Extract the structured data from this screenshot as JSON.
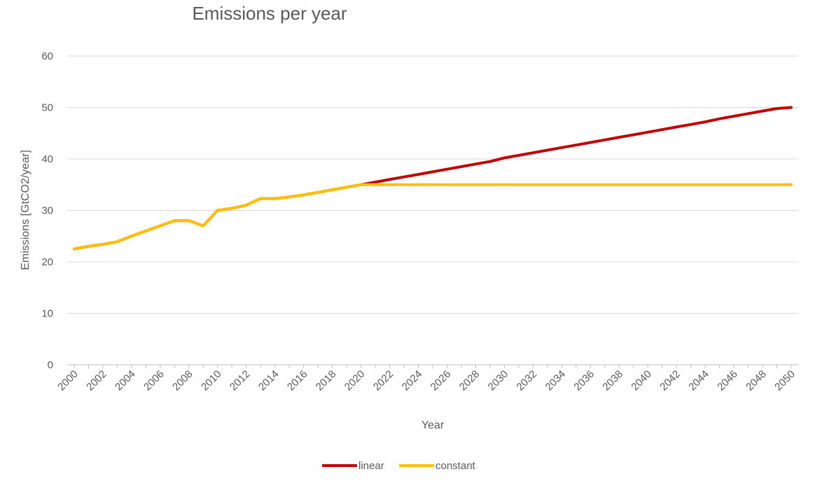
{
  "chart_data": {
    "type": "line",
    "title": "Emissions per year",
    "xlabel": "Year",
    "ylabel": "Emissions [GtCO2/year]",
    "ylim": [
      0,
      60
    ],
    "y_ticks": [
      0,
      10,
      20,
      30,
      40,
      50,
      60
    ],
    "x_tick_labels": [
      "2000",
      "2002",
      "2004",
      "2006",
      "2008",
      "2010",
      "2012",
      "2014",
      "2016",
      "2018",
      "2020",
      "2022",
      "2024",
      "2026",
      "2028",
      "2030",
      "2032",
      "2034",
      "2036",
      "2038",
      "2040",
      "2042",
      "2044",
      "2046",
      "2048",
      "2050"
    ],
    "grid": "horizontal",
    "legend_position": "bottom",
    "x": [
      2000,
      2001,
      2002,
      2003,
      2004,
      2005,
      2006,
      2007,
      2008,
      2009,
      2010,
      2011,
      2012,
      2013,
      2014,
      2015,
      2016,
      2017,
      2018,
      2019,
      2020,
      2021,
      2022,
      2023,
      2024,
      2025,
      2026,
      2027,
      2028,
      2029,
      2030,
      2031,
      2032,
      2033,
      2034,
      2035,
      2036,
      2037,
      2038,
      2039,
      2040,
      2041,
      2042,
      2043,
      2044,
      2045,
      2046,
      2047,
      2048,
      2049,
      2050
    ],
    "series": [
      {
        "name": "linear",
        "color": "#C00000",
        "values": [
          22.5,
          23.0,
          23.4,
          23.9,
          25.0,
          26.0,
          27.0,
          28.0,
          28.0,
          27.0,
          30.0,
          30.4,
          31.0,
          32.3,
          32.3,
          32.6,
          33.0,
          33.5,
          34.0,
          34.5,
          35.0,
          35.5,
          36.0,
          36.5,
          37.0,
          37.5,
          38.0,
          38.5,
          39.0,
          39.5,
          40.2,
          40.7,
          41.2,
          41.7,
          42.2,
          42.7,
          43.2,
          43.7,
          44.2,
          44.7,
          45.2,
          45.7,
          46.2,
          46.7,
          47.2,
          47.8,
          48.3,
          48.8,
          49.3,
          49.8,
          50.0
        ]
      },
      {
        "name": "constant",
        "color": "#FFC000",
        "values": [
          22.5,
          23.0,
          23.4,
          23.9,
          25.0,
          26.0,
          27.0,
          28.0,
          28.0,
          27.0,
          30.0,
          30.4,
          31.0,
          32.3,
          32.3,
          32.6,
          33.0,
          33.5,
          34.0,
          34.5,
          35.0,
          35.0,
          35.0,
          35.0,
          35.0,
          35.0,
          35.0,
          35.0,
          35.0,
          35.0,
          35.0,
          35.0,
          35.0,
          35.0,
          35.0,
          35.0,
          35.0,
          35.0,
          35.0,
          35.0,
          35.0,
          35.0,
          35.0,
          35.0,
          35.0,
          35.0,
          35.0,
          35.0,
          35.0,
          35.0,
          35.0
        ]
      }
    ]
  },
  "colors": {
    "grid": "#D9D9D9",
    "axis": "#BFBFBF",
    "text": "#595959"
  }
}
